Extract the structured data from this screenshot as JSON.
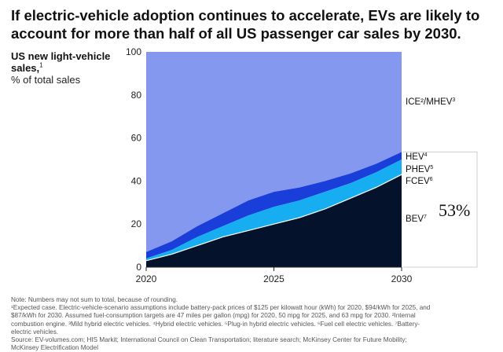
{
  "title": "If electric-vehicle adoption continues to accelerate, EVs are likely to account for more than half of all US passenger car sales by 2030.",
  "ylabel": {
    "main": "US new light-vehicle sales,",
    "sup": "1",
    "unit": "% of total sales"
  },
  "big_label": "53%",
  "colors": {
    "ice": "#8598F0",
    "hev": "#1A3ED9",
    "phev_fcev": "#16AEF0",
    "bev": "#04122C",
    "bev_edge": "#FFFFFF"
  },
  "chart_data": {
    "type": "area",
    "stacked": true,
    "x": [
      2020,
      2021,
      2022,
      2023,
      2024,
      2025,
      2026,
      2027,
      2028,
      2029,
      2030
    ],
    "xticks": [
      "2020",
      "2025",
      "2030"
    ],
    "yticks": [
      "0",
      "20",
      "40",
      "60",
      "80",
      "100"
    ],
    "ylim": [
      0,
      100
    ],
    "xlim": [
      2020,
      2030
    ],
    "grid": false,
    "series": [
      {
        "name": "BEV",
        "sup": "7",
        "values": [
          3,
          6,
          10,
          14,
          17,
          20,
          23,
          27,
          32,
          37,
          43
        ]
      },
      {
        "name": "FCEV",
        "sup": "6",
        "values": [
          0,
          0,
          0,
          0,
          0,
          0,
          0,
          0,
          0,
          0,
          0.5
        ]
      },
      {
        "name": "PHEV",
        "sup": "5",
        "values": [
          1,
          2,
          4,
          5,
          7,
          8,
          8,
          8,
          7,
          7,
          6.5
        ]
      },
      {
        "name": "HEV",
        "sup": "4",
        "values": [
          3,
          4,
          5,
          6,
          7,
          7,
          6,
          5,
          4.5,
          4,
          3.5
        ]
      },
      {
        "name": "ICE²/MHEV",
        "sup": "3",
        "values": [
          93,
          88,
          81,
          75,
          69,
          65,
          63,
          60,
          56.5,
          52,
          46.5
        ]
      }
    ]
  },
  "footer": {
    "lines": [
      "Note: Numbers may not sum to total, because of rounding.",
      "¹Expected case. Electric-vehicle-scenario assumptions include battery-pack prices of $125 per kilowatt hour (kWh) for 2020, $94/kWh for 2025, and",
      "$87/kWh for 2030. Assumed fuel-consumption targets are 47 miles per gallon (mpg) for 2020, 50 mpg for 2025, and 63 mpg for 2030. ²Internal",
      "combustion engine. ³Mild hybrid electric vehicles. ⁴Hybrid electric vehicles. ⁵Plug-in hybrid electric vehicles. ⁶Fuel cell electric vehicles. ⁷Battery-",
      "electric vehicles.",
      "Source: EV-volumes.com; HIS Markit; International Council on Clean Transportation; literature search; McKinsey Center for Future Mobility;",
      "McKinsey Electrification Model"
    ]
  }
}
